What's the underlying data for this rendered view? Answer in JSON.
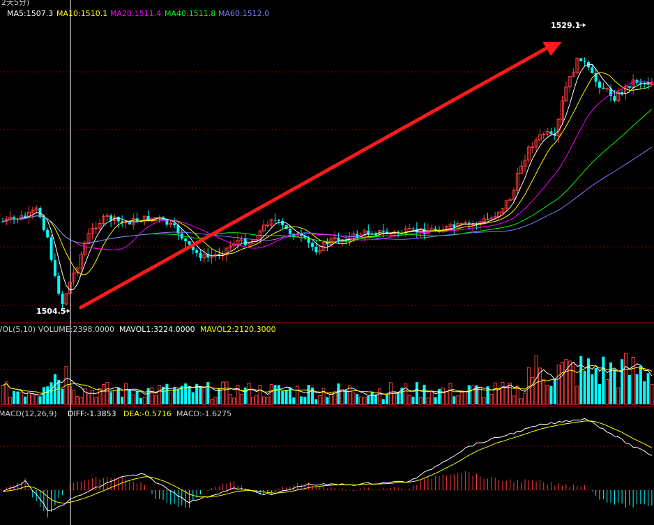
{
  "header_fragment": "2天5分)",
  "colors": {
    "background": "#000000",
    "up": "#ff3b3b",
    "down": "#00ffff",
    "ma5": "#ffffff",
    "ma10": "#ffff00",
    "ma20": "#ff00ff",
    "ma40": "#00ff00",
    "ma60": "#7b7bff",
    "grid": "#8b0000",
    "arrow": "#ff1a1a"
  },
  "price_panel": {
    "legend": [
      {
        "label": "MA5:1507.3",
        "color": "#ffffff"
      },
      {
        "label": "MA10:1510.1",
        "color": "#ffff00"
      },
      {
        "label": "MA20:1511.4",
        "color": "#ff00ff"
      },
      {
        "label": "MA40:1511.8",
        "color": "#00ff00"
      },
      {
        "label": "MA60:1512.0",
        "color": "#7b7bff"
      }
    ],
    "high_label": "1529.1",
    "low_label": "1504.5"
  },
  "volume_panel": {
    "legend": [
      {
        "label": "VOL(5,10) VOLUME:2398.0000",
        "color": "#cccccc"
      },
      {
        "label": "MAVOL1:3224.0000",
        "color": "#ffffff"
      },
      {
        "label": "MAVOL2:2120.3000",
        "color": "#ffff00"
      }
    ]
  },
  "macd_panel": {
    "legend": [
      {
        "label": "MACD(12,26,9)",
        "color": "#cccccc"
      },
      {
        "label": "DIFF:-1.3853",
        "color": "#ffffff"
      },
      {
        "label": "DEA:-0.5716",
        "color": "#ffff00"
      },
      {
        "label": "MACD:-1.6275",
        "color": "#cccccc"
      }
    ]
  },
  "chart_data": {
    "type": "candlestick",
    "price_range": [
      1503.5,
      1531.5
    ],
    "low_point": 1504.5,
    "high_point": 1529.1,
    "trend_arrow": {
      "from": 1504.5,
      "to": 1529.1
    }
  }
}
